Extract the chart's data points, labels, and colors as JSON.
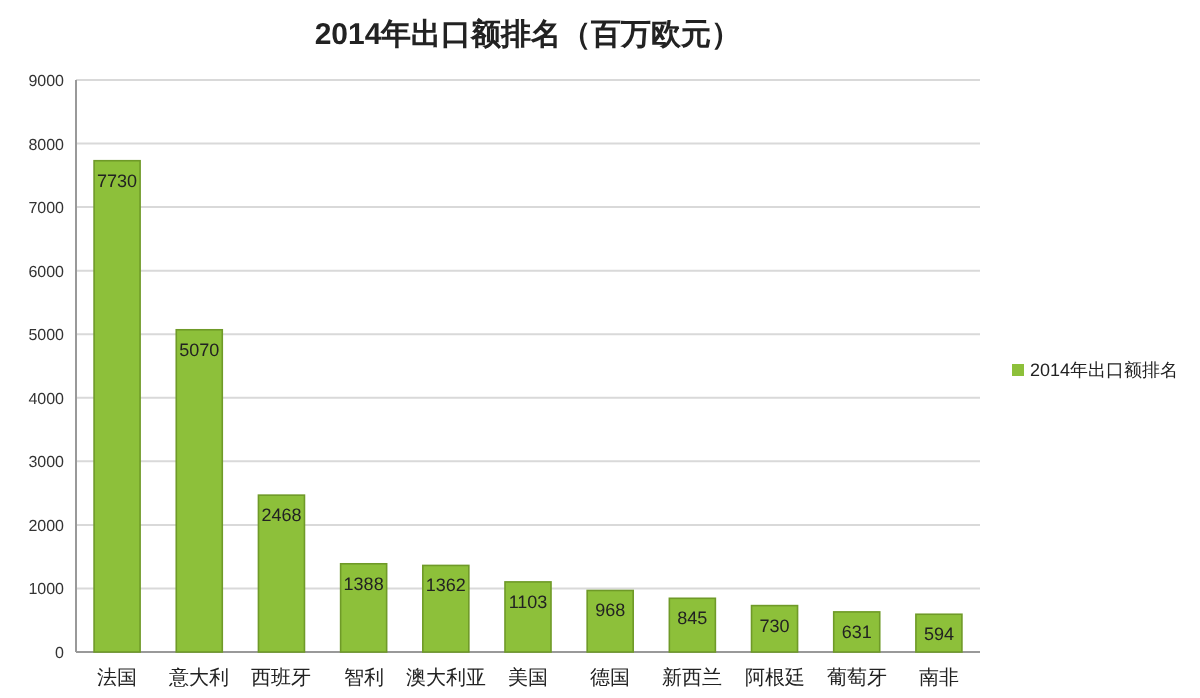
{
  "chart_data": {
    "type": "bar",
    "title": "2014年出口额排名（百万欧元）",
    "categories": [
      "法国",
      "意大利",
      "西班牙",
      "智利",
      "澳大利亚",
      "美国",
      "德国",
      "新西兰",
      "阿根廷",
      "葡萄牙",
      "南非"
    ],
    "series": [
      {
        "name": "2014年出口额排名",
        "color": "#8dc03a",
        "values": [
          7730,
          5070,
          2468,
          1388,
          1362,
          1103,
          968,
          845,
          730,
          631,
          594
        ]
      }
    ],
    "ylim": [
      0,
      9000
    ],
    "yticks": [
      0,
      1000,
      2000,
      3000,
      4000,
      5000,
      6000,
      7000,
      8000,
      9000
    ],
    "grid": "y",
    "legend": "right",
    "data_labels": true
  }
}
